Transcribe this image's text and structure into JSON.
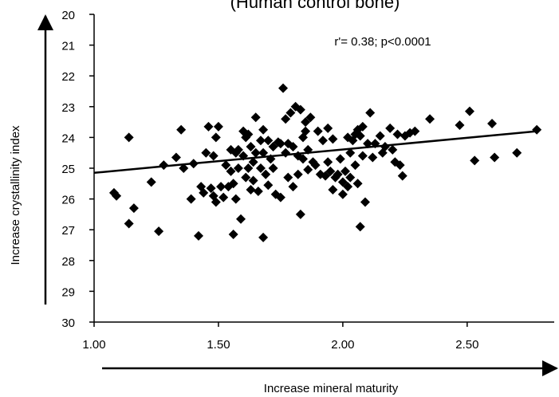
{
  "chart_data": {
    "type": "scatter",
    "title": "(Human control bone)",
    "annotation": "r'= 0.38; p<0.0001",
    "xlabel": "Increase mineral maturity",
    "ylabel": "Increase crystallinity index",
    "color": "#000000",
    "y_reversed": true,
    "xlim": [
      1.0,
      2.85
    ],
    "ylim": [
      20,
      30
    ],
    "xticks": [
      {
        "value": 1.0,
        "label": "1.00"
      },
      {
        "value": 1.5,
        "label": "1.50"
      },
      {
        "value": 2.0,
        "label": "2.00"
      },
      {
        "value": 2.5,
        "label": "2.50"
      }
    ],
    "yticks": [
      20,
      21,
      22,
      23,
      24,
      25,
      26,
      27,
      28,
      29,
      30
    ],
    "trendline": {
      "x": [
        1.0,
        2.78
      ],
      "y": [
        25.15,
        23.8
      ]
    },
    "x": [
      1.08,
      1.09,
      1.14,
      1.14,
      1.16,
      1.23,
      1.26,
      1.28,
      1.33,
      1.35,
      1.36,
      1.39,
      1.4,
      1.42,
      1.43,
      1.44,
      1.45,
      1.46,
      1.47,
      1.48,
      1.48,
      1.49,
      1.49,
      1.5,
      1.51,
      1.52,
      1.53,
      1.54,
      1.55,
      1.55,
      1.56,
      1.56,
      1.57,
      1.57,
      1.58,
      1.58,
      1.59,
      1.6,
      1.6,
      1.61,
      1.61,
      1.62,
      1.62,
      1.63,
      1.63,
      1.64,
      1.64,
      1.65,
      1.65,
      1.66,
      1.67,
      1.67,
      1.68,
      1.68,
      1.68,
      1.69,
      1.7,
      1.7,
      1.71,
      1.72,
      1.72,
      1.73,
      1.74,
      1.75,
      1.75,
      1.76,
      1.77,
      1.77,
      1.78,
      1.78,
      1.79,
      1.8,
      1.8,
      1.81,
      1.82,
      1.82,
      1.83,
      1.83,
      1.84,
      1.84,
      1.85,
      1.85,
      1.86,
      1.86,
      1.87,
      1.88,
      1.89,
      1.9,
      1.91,
      1.92,
      1.93,
      1.94,
      1.94,
      1.95,
      1.96,
      1.96,
      1.97,
      1.98,
      1.99,
      2.0,
      2.0,
      2.01,
      2.02,
      2.02,
      2.03,
      2.03,
      2.04,
      2.05,
      2.05,
      2.06,
      2.06,
      2.07,
      2.07,
      2.08,
      2.08,
      2.09,
      2.1,
      2.11,
      2.12,
      2.13,
      2.15,
      2.16,
      2.17,
      2.19,
      2.2,
      2.21,
      2.22,
      2.23,
      2.24,
      2.25,
      2.27,
      2.29,
      2.35,
      2.47,
      2.51,
      2.53,
      2.6,
      2.61,
      2.7,
      2.78
    ],
    "y": [
      25.8,
      25.9,
      24.0,
      26.8,
      26.3,
      25.45,
      27.05,
      24.9,
      24.65,
      23.75,
      25.0,
      26.0,
      24.85,
      27.2,
      25.6,
      25.8,
      24.5,
      23.65,
      25.65,
      24.6,
      25.9,
      24.0,
      26.1,
      23.65,
      25.6,
      25.95,
      24.9,
      25.6,
      24.4,
      25.1,
      25.5,
      27.15,
      24.5,
      26.0,
      24.4,
      25.0,
      26.65,
      23.8,
      24.6,
      25.3,
      24.0,
      23.9,
      25.0,
      24.3,
      25.7,
      24.8,
      25.4,
      23.35,
      24.5,
      25.75,
      24.1,
      25.0,
      27.25,
      23.75,
      24.5,
      25.2,
      24.1,
      25.55,
      24.7,
      25.0,
      24.3,
      25.85,
      24.15,
      25.95,
      24.2,
      22.4,
      23.4,
      24.5,
      25.3,
      24.2,
      23.2,
      24.3,
      25.6,
      23.0,
      24.6,
      25.2,
      23.1,
      26.5,
      24.0,
      24.7,
      23.5,
      23.8,
      24.4,
      25.05,
      23.35,
      24.8,
      24.9,
      23.8,
      25.2,
      24.1,
      25.25,
      23.7,
      24.8,
      25.1,
      25.7,
      24.05,
      25.3,
      25.2,
      24.7,
      25.85,
      25.45,
      25.1,
      24.0,
      25.6,
      24.5,
      25.3,
      24.1,
      23.9,
      24.9,
      23.75,
      25.5,
      26.9,
      23.95,
      23.65,
      24.6,
      26.1,
      24.2,
      23.2,
      24.65,
      24.2,
      23.95,
      24.5,
      24.3,
      23.7,
      24.4,
      24.8,
      23.9,
      24.9,
      25.25,
      23.95,
      23.85,
      23.8,
      23.4,
      23.6,
      23.15,
      24.75,
      23.55,
      24.65,
      24.5,
      23.75
    ]
  }
}
